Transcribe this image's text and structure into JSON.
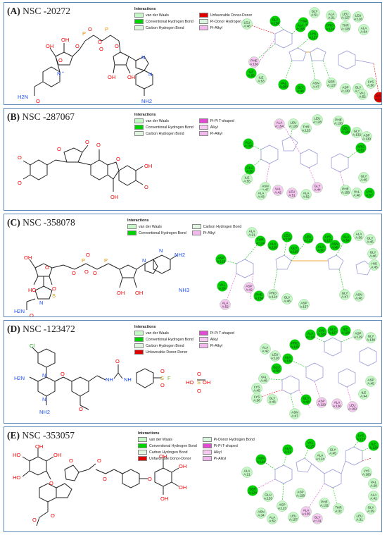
{
  "colors": {
    "frame": "#5b86b8",
    "van_der_waals": "#c6f7c6",
    "conventional_hbond": "#00d100",
    "carbon_hbond": "#dff5df",
    "unfavorable": "#e00000",
    "pi_donor": "#d8f5e0",
    "pi_t_shaped": "#e04bd1",
    "alkyl": "#f7c8f2",
    "pi_alkyl": "#f2b8ee"
  },
  "panels": [
    {
      "id": "A",
      "label": "(A)",
      "name": "NSC -20272",
      "legend": {
        "title": "Interactions",
        "col1": [
          "van der Waals",
          "Conventional Hydrogen Bond",
          "Carbon Hydrogen Bond"
        ],
        "col2": [
          "Unfavorable Donor-Donor",
          "Pi-Donor Hydrogen Bond",
          "Pi-Alkyl"
        ]
      },
      "atoms": [
        "OH",
        "OH",
        "O",
        "O",
        "O",
        "O",
        "O",
        "O",
        "OH",
        "OH",
        "N",
        "N",
        "N",
        "N",
        "NH2",
        "H2N",
        "O"
      ],
      "residues": [
        "ASN A:124",
        "GLY A:51",
        "ALA A:21",
        "LEU A:127",
        "LEU A:126",
        "LYS A:127",
        "ALA A:155",
        "PRO A:124",
        "THR A:128",
        "ALA A:54",
        "GLY A:156",
        "PHE A:156",
        "ILE A:55",
        "ILE A:53",
        "VAL A:160",
        "GLY A:48",
        "ASN A:47",
        "SER A:127",
        "ASP A:130",
        "GLY A:45",
        "LYS A:50",
        "VAL A:52",
        "LEU A:48",
        "ARG A:145"
      ]
    },
    {
      "id": "B",
      "label": "(B)",
      "name": "NSC -287067",
      "legend": {
        "title": "Interactions",
        "col1": [
          "van der Waals",
          "Conventional Hydrogen Bond",
          "Carbon Hydrogen Bond"
        ],
        "col2": [
          "Pi-Pi T-shaped",
          "Alkyl",
          "Pi-Alkyl"
        ]
      },
      "atoms": [
        "O",
        "O",
        "O",
        "O",
        "O",
        "OH",
        "O",
        "OH"
      ],
      "residues": [
        "LEU A:128",
        "PHE A:130",
        "LEU A:129",
        "GLY A:132",
        "ASP A:130",
        "LEU A:126",
        "ALA A:154",
        "THR A:123",
        "ALA A:155",
        "GLU A:50",
        "ASN A:47",
        "ILE A:55",
        "VAL A:42",
        "LEU A:51",
        "ALA A:52",
        "GLY A:44",
        "PHE A:156",
        "VAL A:48",
        "LYS A:57",
        "GLY A:45",
        "ARG A:52",
        "ALA A:43"
      ]
    },
    {
      "id": "C",
      "label": "(C)",
      "name": "NSC -358078",
      "legend": {
        "title": "Interactions",
        "col1": [
          "van der Waals",
          "Conventional Hydrogen Bond"
        ],
        "col2": [
          "Carbon Hydrogen Bond",
          "Pi-Alkyl"
        ]
      },
      "atoms": [
        "HO",
        "OH",
        "O",
        "O",
        "O",
        "O",
        "O",
        "O",
        "OH",
        "OH",
        "OH",
        "N",
        "N",
        "N",
        "S",
        "NH2",
        "H2N",
        "O",
        "NH3"
      ],
      "residues": [
        "ALA A:21",
        "LEU A:126",
        "LEU A:127",
        "LYS A:127",
        "ALA A:54",
        "GLY A:45",
        "ALA A:39",
        "GLY A:46",
        "HIS A:45",
        "ASP A:123",
        "THR A:124",
        "ALA A:155",
        "GLY A:125",
        "ALA A:50",
        "ASN A:48",
        "ASP A:42",
        "VAL A:24",
        "PRO A:124",
        "PHE A:156",
        "GLY A:48",
        "GLY A:47",
        "ASN A:46",
        "ALA A:52",
        "ASP A:157"
      ]
    },
    {
      "id": "D",
      "label": "(D)",
      "name": "NSC -123472",
      "legend": {
        "title": "Interactions",
        "col1": [
          "van der Waals",
          "Conventional Hydrogen Bond",
          "Carbon Hydrogen Bond",
          "Unfavorable Donor-Donor"
        ],
        "col2": [
          "Pi-Pi T-shaped",
          "Alkyl",
          "Pi-Alkyl"
        ]
      },
      "atoms": [
        "Cl",
        "NH2",
        "H2N",
        "N",
        "N",
        "O",
        "O",
        "NH",
        "NH",
        "O",
        "S",
        "F",
        "O",
        "O",
        "HO",
        "OH",
        "S",
        "O",
        "O"
      ],
      "residues": [
        "ALA A:124",
        "LYS A:125",
        "GLY A:127",
        "ILE A:128",
        "ASP A:129",
        "GLY A:130",
        "ALA A:131",
        "LEU A:126",
        "ALA A:42",
        "PRO A:125",
        "VAL A:48",
        "GLU A:50",
        "LYS A:45",
        "GLY A:46",
        "ASN A:47",
        "GLY A:48",
        "LYS A:36",
        "ASP A:129",
        "ALA A:160",
        "LEU A:160",
        "ILE A:44",
        "ASP A:45"
      ]
    },
    {
      "id": "E",
      "label": "(E)",
      "name": "NSC -353057",
      "legend": {
        "title": "Interactions",
        "col1": [
          "van der Waals",
          "Conventional Hydrogen Bond",
          "Carbon Hydrogen Bond",
          "Unfavorable Donor-Donor"
        ],
        "col2": [
          "Pi-Donor Hydrogen Bond",
          "Pi-Pi T-shaped",
          "Alkyl",
          "Pi-Alkyl"
        ]
      },
      "atoms": [
        "HO",
        "OH",
        "OH",
        "O",
        "O",
        "O",
        "O",
        "O",
        "O",
        "O",
        "O",
        "O",
        "OH",
        "OH",
        "OH",
        "HO",
        "O",
        "O"
      ],
      "residues": [
        "ASN A:124",
        "ALA A:21",
        "VAL A:125",
        "LYS A:127",
        "ILE A:128",
        "ASP A:128",
        "ALA A:124",
        "GLY A:45",
        "LYS A:160",
        "VAL A:28",
        "ALA A:42",
        "GLY A:39",
        "LEU A:31",
        "THR A:32",
        "PHE A:132",
        "ASP A:123",
        "GLU A:153",
        "SER A:124",
        "ALA A:155",
        "GLY A:131",
        "LEU A:157",
        "ALA A:52",
        "ALA A:21",
        "ASN A:34"
      ]
    }
  ]
}
